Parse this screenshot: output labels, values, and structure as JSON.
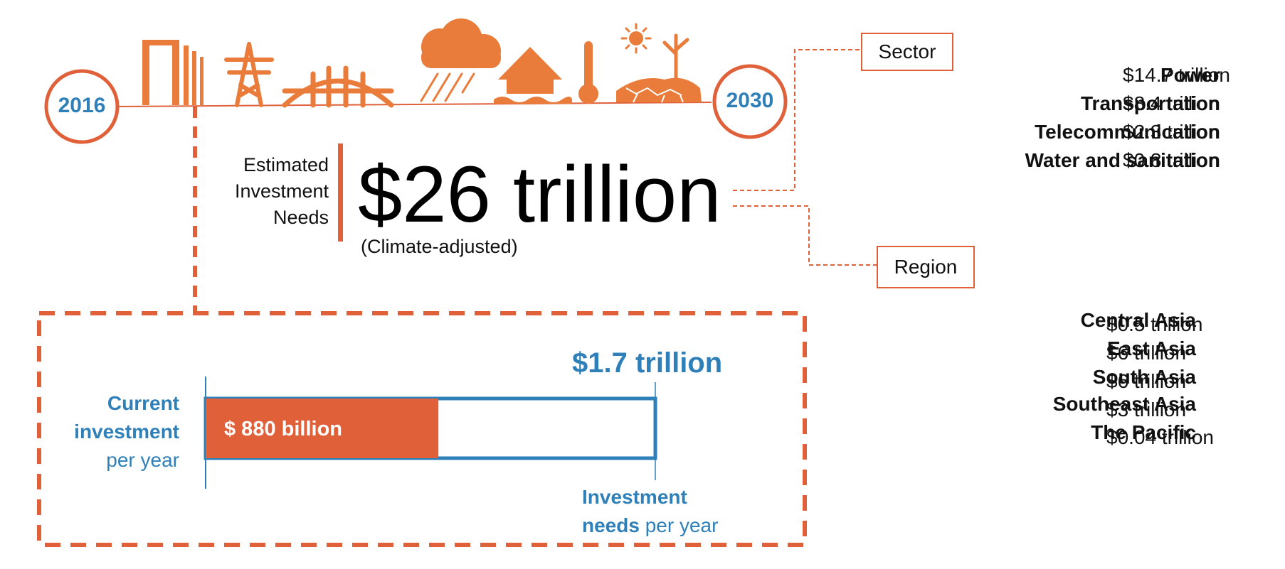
{
  "timeline": {
    "start_year": "2016",
    "end_year": "2030",
    "icons": [
      "buildings-icon",
      "power-tower-icon",
      "bridge-icon",
      "storm-cloud-icon",
      "flooded-house-icon",
      "thermometer-icon",
      "drought-icon"
    ]
  },
  "headline": {
    "label_lines": [
      "Estimated",
      "Investment",
      "Needs"
    ],
    "total": "$26 trillion",
    "note": "(Climate-adjusted)"
  },
  "sector": {
    "title": "Sector",
    "rows": [
      {
        "name": "Power",
        "value": "$14.7 trillion"
      },
      {
        "name": "Transportation",
        "value": "$8.4 trillion"
      },
      {
        "name": "Telecommunication",
        "value": "$2.3 trillion"
      },
      {
        "name": "Water and sanitation",
        "value": "$0.8 trillion"
      }
    ]
  },
  "region": {
    "title": "Region",
    "rows": [
      {
        "name": "Central Asia",
        "value": "$0.5 trillion"
      },
      {
        "name": "East Asia",
        "value": "$6 trillion"
      },
      {
        "name": "South Asia",
        "value": "$6 trillion"
      },
      {
        "name": "Southeast Asia",
        "value": "$3 trillion"
      },
      {
        "name": "The Pacific",
        "value": "$0.04 trillion"
      }
    ]
  },
  "colors": {
    "orange": "#e0603a",
    "icon_orange": "#e97c3a",
    "blue": "#2f80b8"
  },
  "chart_data": {
    "type": "bar",
    "current_label_bold_1": "Current",
    "current_label_bold_2": "investment",
    "current_label_rest": "per year",
    "needs_label_bold": "Investment",
    "needs_label_bold_2": "needs",
    "needs_label_rest": "per year",
    "current_value_billion": 880,
    "needs_value_billion": 1700,
    "current_value_label": "$ 880 billion",
    "needs_value_label": "$1.7 trillion"
  }
}
